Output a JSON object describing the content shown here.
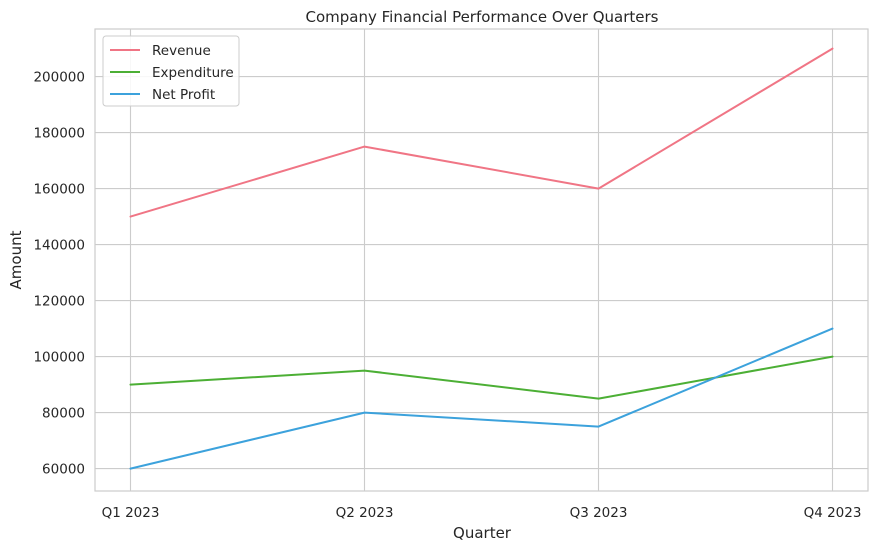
{
  "chart_data": {
    "type": "line",
    "title": "Company Financial Performance Over Quarters",
    "xlabel": "Quarter",
    "ylabel": "Amount",
    "categories": [
      "Q1 2023",
      "Q2 2023",
      "Q3 2023",
      "Q4 2023"
    ],
    "ylim": [
      52000,
      217000
    ],
    "yticks": [
      60000,
      80000,
      100000,
      120000,
      140000,
      160000,
      180000,
      200000
    ],
    "grid": true,
    "legend_position": "top-left",
    "series": [
      {
        "name": "Revenue",
        "color": "#f07585",
        "values": [
          150000,
          175000,
          160000,
          210000
        ]
      },
      {
        "name": "Expenditure",
        "color": "#4caf35",
        "values": [
          90000,
          95000,
          85000,
          100000
        ]
      },
      {
        "name": "Net Profit",
        "color": "#3ca2dc",
        "values": [
          60000,
          80000,
          75000,
          110000
        ]
      }
    ]
  }
}
